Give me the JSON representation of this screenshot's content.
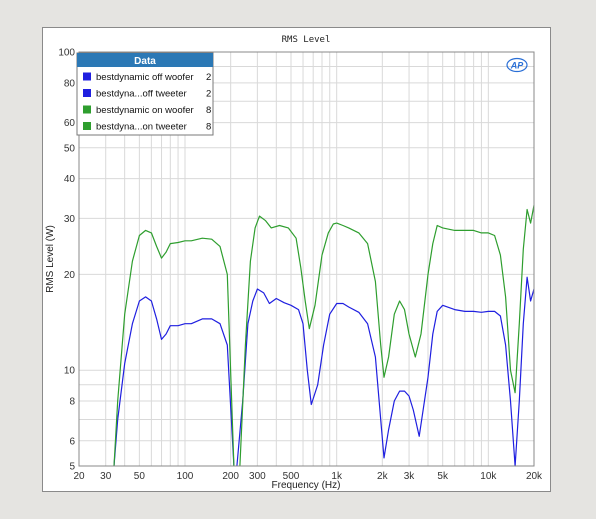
{
  "chart_data": {
    "type": "line",
    "title": "RMS Level",
    "xlabel": "Frequency (Hz)",
    "ylabel": "RMS Level (W)",
    "xscale": "log",
    "yscale": "log",
    "xlim": [
      20,
      20000
    ],
    "ylim": [
      5,
      100
    ],
    "x_tick_values": [
      20,
      30,
      50,
      100,
      200,
      300,
      500,
      1000,
      2000,
      3000,
      5000,
      10000,
      20000
    ],
    "x_tick_labels": [
      "20",
      "30",
      "50",
      "100",
      "200",
      "300",
      "500",
      "1k",
      "2k",
      "3k",
      "5k",
      "10k",
      "20k"
    ],
    "y_tick_values": [
      5,
      6,
      8,
      10,
      20,
      30,
      40,
      50,
      60,
      80,
      100
    ],
    "y_tick_labels": [
      "5",
      "6",
      "8",
      "10",
      "20",
      "30",
      "40",
      "50",
      "60",
      "80",
      "100"
    ],
    "grid": true,
    "legend": {
      "title": "Data",
      "placement": "top-left"
    },
    "logo_text": "AP",
    "series": [
      {
        "name": "bestdynamic off woofer",
        "channel": "2",
        "color": "#1f1fe0",
        "x": [
          34,
          36,
          40,
          45,
          50,
          55,
          60,
          65,
          70,
          75,
          80,
          90,
          100,
          110,
          130,
          150,
          170,
          190,
          210
        ],
        "y": [
          5,
          7,
          10.5,
          14,
          16.5,
          17,
          16.5,
          14.5,
          12.5,
          13,
          13.8,
          13.8,
          14,
          14,
          14.5,
          14.5,
          14,
          12,
          5
        ]
      },
      {
        "name": "bestdyna...off tweeter",
        "channel": "2",
        "color": "#1f1fe0",
        "x": [
          220,
          240,
          260,
          280,
          300,
          330,
          360,
          400,
          450,
          500,
          560,
          600,
          640,
          680,
          750,
          820,
          900,
          1000,
          1100,
          1200,
          1400,
          1600,
          1800,
          1950,
          2050,
          2200,
          2400,
          2600,
          2800,
          3000,
          3200,
          3500,
          4000,
          4300,
          4600,
          5000,
          6000,
          7000,
          8000,
          9000,
          10000,
          11000,
          12000,
          13000,
          14000,
          15000,
          16000,
          17000,
          18000,
          19000,
          20000
        ],
        "y": [
          5,
          8,
          14,
          16.5,
          18,
          17.5,
          16.2,
          16.8,
          16.3,
          16,
          15.5,
          14,
          10,
          7.8,
          9,
          12,
          15,
          16.2,
          16.2,
          15.8,
          15.2,
          14,
          11,
          7,
          5.3,
          6.5,
          8,
          8.6,
          8.6,
          8.3,
          7.5,
          6.2,
          9.5,
          13,
          15.3,
          16,
          15.5,
          15.3,
          15.3,
          15.2,
          15.3,
          15.3,
          14.8,
          12,
          8,
          5,
          8,
          14,
          19.6,
          16.5,
          18
        ]
      },
      {
        "name": "bestdynamic on woofer",
        "channel": "8",
        "color": "#2e9e2e",
        "x": [
          34,
          36,
          40,
          45,
          50,
          55,
          60,
          65,
          70,
          75,
          80,
          90,
          100,
          110,
          130,
          150,
          170,
          190,
          210
        ],
        "y": [
          5,
          8,
          15,
          22,
          26.5,
          27.5,
          27,
          24.5,
          22.5,
          23.5,
          25,
          25.2,
          25.5,
          25.5,
          26,
          25.8,
          24.5,
          20,
          5
        ]
      },
      {
        "name": "bestdyna...on tweeter",
        "channel": "8",
        "color": "#2e9e2e",
        "x": [
          230,
          250,
          270,
          290,
          310,
          340,
          370,
          420,
          480,
          540,
          580,
          620,
          660,
          720,
          800,
          880,
          950,
          1000,
          1100,
          1200,
          1400,
          1600,
          1800,
          1950,
          2050,
          2200,
          2400,
          2600,
          2800,
          3000,
          3300,
          3600,
          4000,
          4300,
          4600,
          5000,
          6000,
          7000,
          8000,
          9000,
          10000,
          11000,
          12000,
          13000,
          14000,
          15000,
          16000,
          17000,
          18000,
          19000,
          20000
        ],
        "y": [
          5,
          12,
          22,
          28,
          30.5,
          29.5,
          28,
          28.5,
          28,
          26,
          21,
          16.5,
          13.5,
          16,
          23,
          27,
          28.8,
          29,
          28.5,
          28,
          27,
          25,
          19,
          12,
          9.5,
          11,
          15,
          16.5,
          15.5,
          13,
          11,
          13,
          20,
          25,
          28.5,
          28,
          27.5,
          27.5,
          27.5,
          27,
          27,
          26.5,
          23,
          17,
          10,
          8.5,
          14,
          24,
          32,
          29,
          33
        ]
      }
    ]
  }
}
